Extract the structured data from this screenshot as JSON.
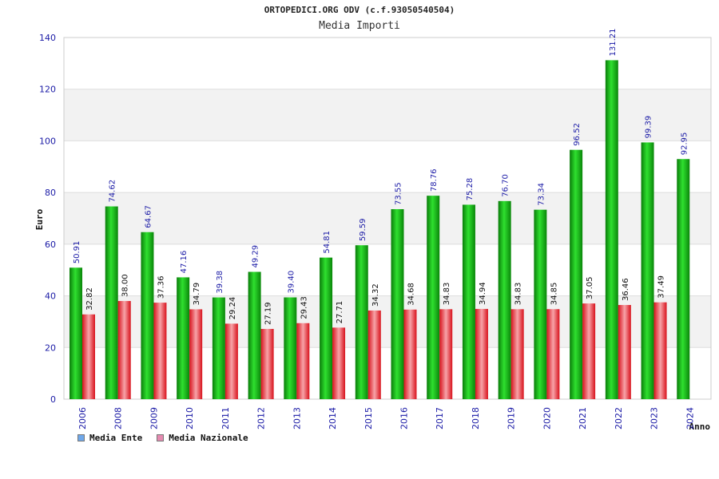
{
  "header": {
    "title": "ORTOPEDICI.ORG ODV (c.f.93050540504)",
    "subtitle": "Media Importi"
  },
  "legend": {
    "items": [
      {
        "label": "Media Ente",
        "color": "#6fa8ea"
      },
      {
        "label": "Media Nazionale",
        "color": "#e58ab0"
      }
    ]
  },
  "chart_data": {
    "type": "bar",
    "title": "ORTOPEDICI.ORG ODV (c.f.93050540504)",
    "subtitle": "Media Importi",
    "xlabel": "Anno",
    "ylabel": "Euro",
    "ylim": [
      0,
      140
    ],
    "yticks": [
      0,
      20,
      40,
      60,
      80,
      100,
      120,
      140
    ],
    "grid": true,
    "legend_position": "bottom-left",
    "categories": [
      "2006",
      "2008",
      "2009",
      "2010",
      "2011",
      "2012",
      "2013",
      "2014",
      "2015",
      "2016",
      "2017",
      "2018",
      "2019",
      "2020",
      "2021",
      "2022",
      "2023",
      "2024"
    ],
    "series": [
      {
        "name": "Media Ente",
        "color": "#16b816",
        "values": [
          50.91,
          74.62,
          64.67,
          47.16,
          39.38,
          49.29,
          39.4,
          54.81,
          59.59,
          73.55,
          78.76,
          75.28,
          76.7,
          73.34,
          96.52,
          131.21,
          99.39,
          92.95
        ],
        "labels": [
          "50.91",
          "74.62",
          "64.67",
          "47.16",
          "39.38",
          "49.29",
          "39.40",
          "54.81",
          "59.59",
          "73.55",
          "78.76",
          "75.28",
          "76.70",
          "73.34",
          "96.52",
          "131.21",
          "99.39",
          "92.95"
        ]
      },
      {
        "name": "Media Nazionale",
        "color": "#e8202a",
        "values": [
          32.82,
          38.0,
          37.36,
          34.79,
          29.24,
          27.19,
          29.43,
          27.71,
          34.32,
          34.68,
          34.83,
          34.94,
          34.83,
          34.85,
          37.05,
          36.46,
          37.49,
          null
        ],
        "labels": [
          "32.82",
          "38.00",
          "37.36",
          "34.79",
          "29.24",
          "27.19",
          "29.43",
          "27.71",
          "34.32",
          "34.68",
          "34.83",
          "34.94",
          "34.83",
          "34.85",
          "37.05",
          "36.46",
          "37.49",
          ""
        ]
      }
    ]
  }
}
